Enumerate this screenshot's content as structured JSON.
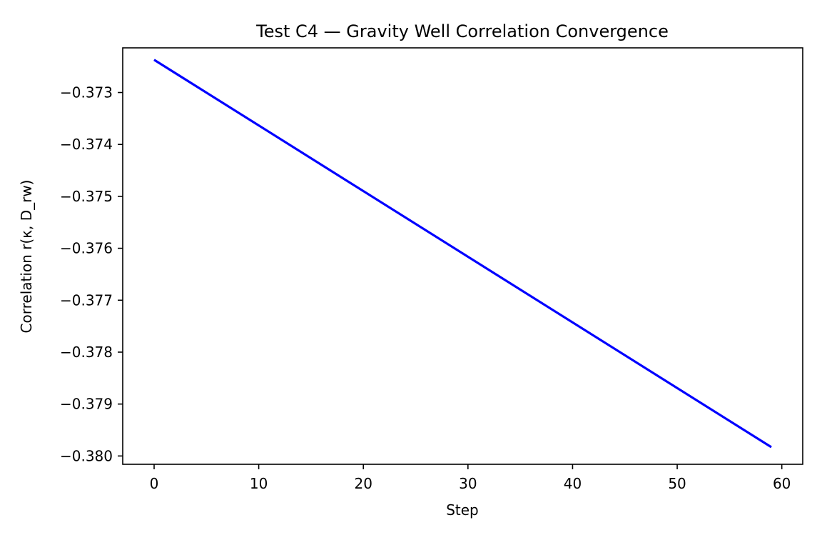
{
  "chart_data": {
    "type": "line",
    "title": "Test C4 — Gravity Well Correlation Convergence",
    "xlabel": "Step",
    "ylabel": "Correlation r(κ, D_rw)",
    "xlim": [
      -3,
      62
    ],
    "ylim": [
      -0.38016,
      -0.37214
    ],
    "xticks": [
      0,
      10,
      20,
      30,
      40,
      50,
      60
    ],
    "xtick_labels": [
      "0",
      "10",
      "20",
      "30",
      "40",
      "50",
      "60"
    ],
    "yticks": [
      -0.373,
      -0.374,
      -0.375,
      -0.376,
      -0.377,
      -0.378,
      -0.379,
      -0.38
    ],
    "ytick_labels": [
      "−0.373",
      "−0.374",
      "−0.375",
      "−0.376",
      "−0.377",
      "−0.378",
      "−0.379",
      "−0.380"
    ],
    "grid": false,
    "series": [
      {
        "color": "#0000ff",
        "x": [
          0,
          59
        ],
        "y": [
          -0.37237,
          -0.37983
        ]
      }
    ]
  }
}
